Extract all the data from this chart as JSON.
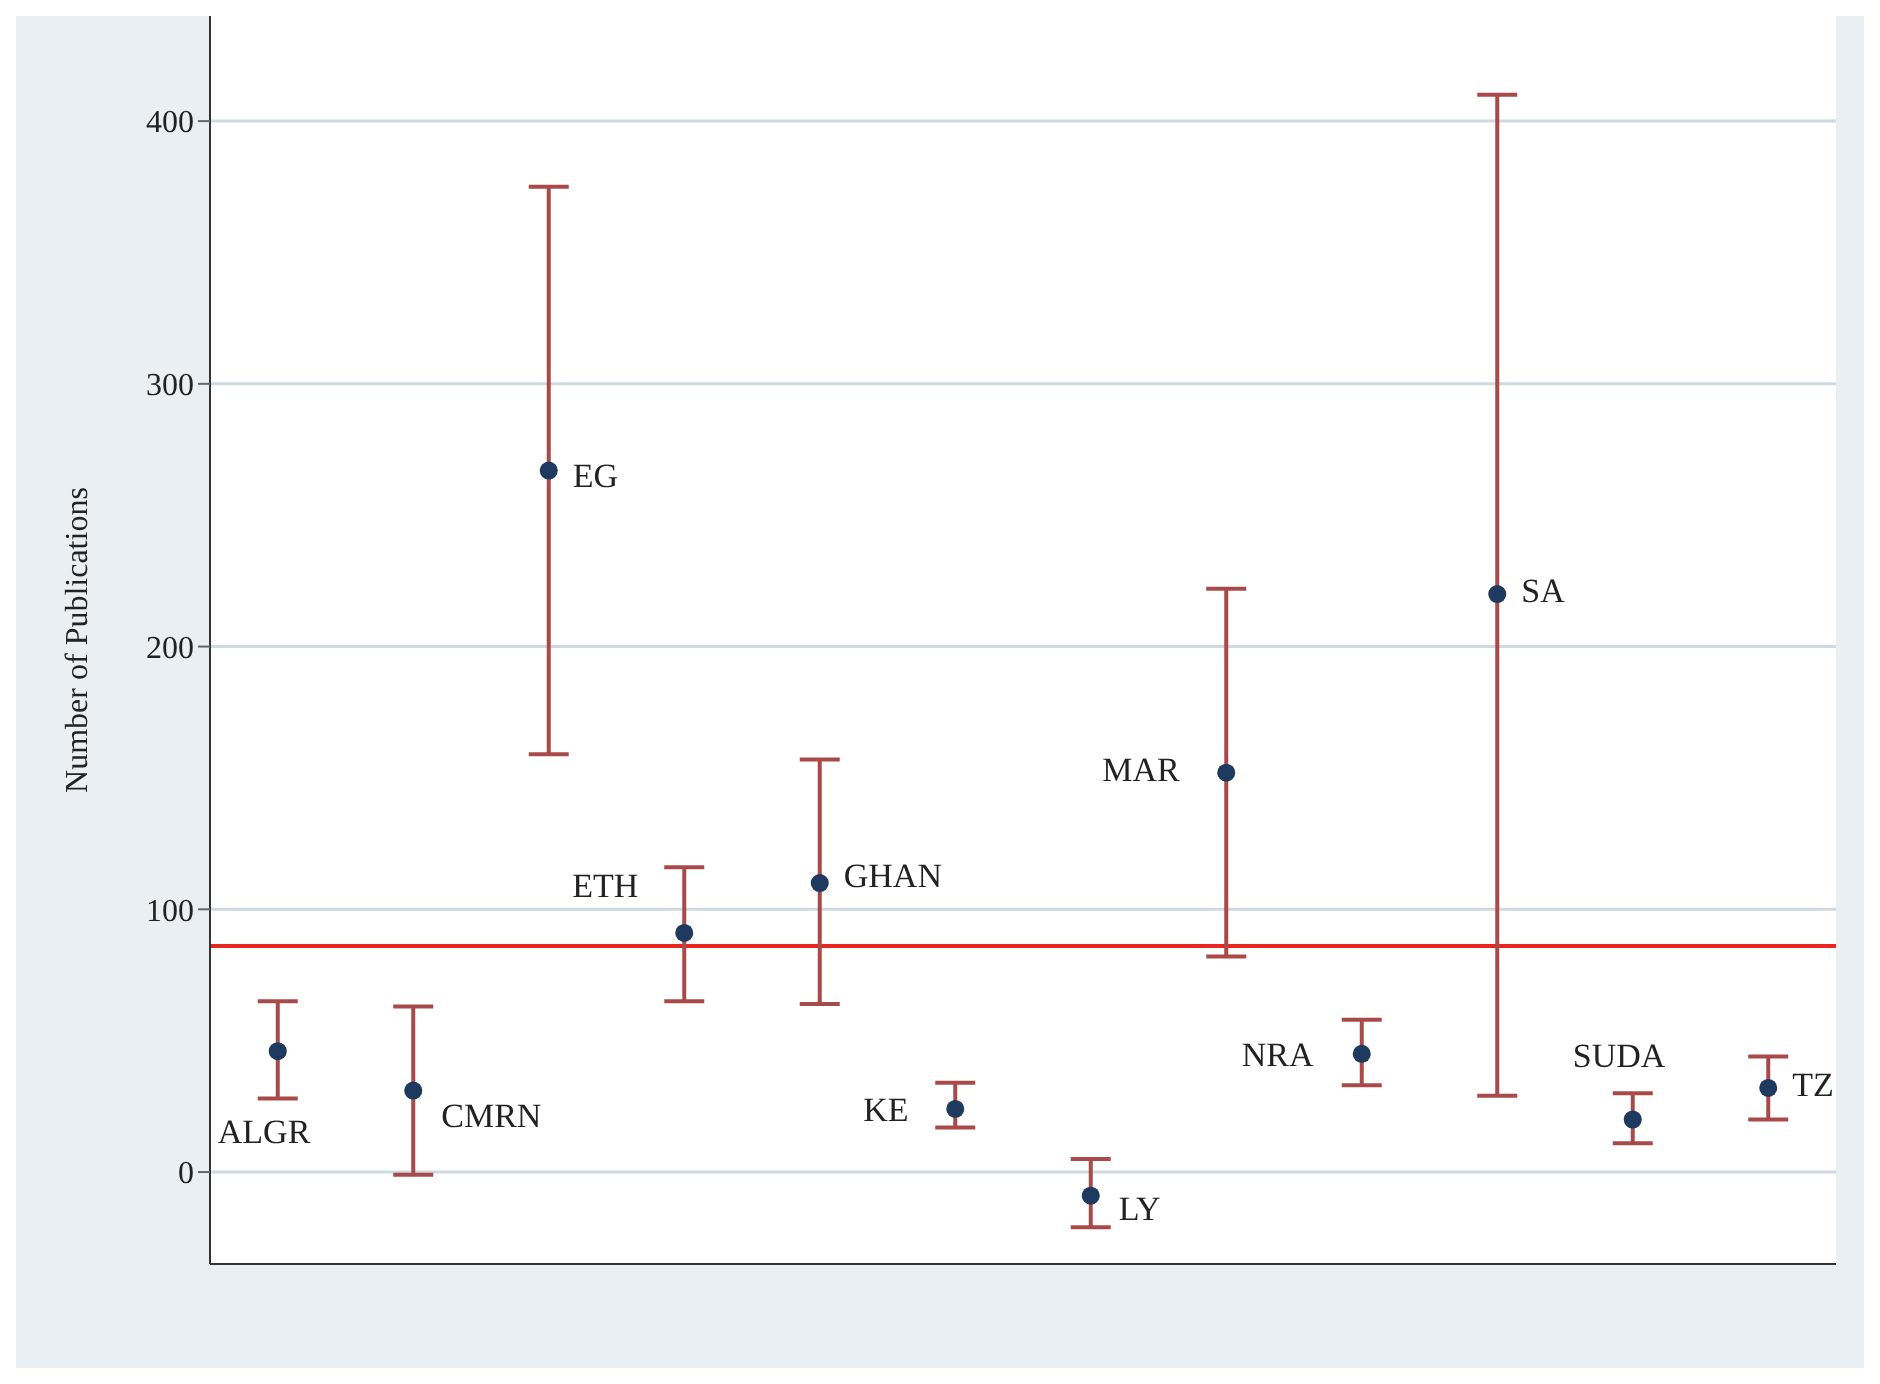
{
  "chart_data": {
    "type": "scatter",
    "ylabel": "Number of Publications",
    "categories": [
      null,
      null,
      null,
      null,
      null,
      null,
      null,
      null,
      null,
      null,
      null,
      null
    ],
    "series": [
      {
        "color": "#1f3a5f",
        "values": [
          46,
          31,
          267,
          91,
          110,
          24,
          -9,
          152,
          45,
          220,
          20,
          32
        ],
        "errors": [
          [
            28,
            65
          ],
          [
            -1,
            63
          ],
          [
            159,
            375
          ],
          [
            65,
            116
          ],
          [
            64,
            157
          ],
          [
            17,
            34
          ],
          [
            -21,
            5
          ],
          [
            82,
            222
          ],
          [
            33,
            58
          ],
          [
            29,
            410
          ],
          [
            11,
            30
          ],
          [
            20,
            44
          ]
        ]
      }
    ],
    "ylim": [
      -35,
      440
    ],
    "yticks": [
      0,
      100,
      200,
      300,
      400
    ],
    "grid": "y",
    "marker": "circle",
    "legend": false,
    "ref_lines": [
      {
        "axis": "y",
        "value": 86,
        "color": "#e8251f"
      }
    ],
    "annotations": [
      "ALGR",
      "CMRN",
      "EG",
      "ETH",
      "GHAN",
      "KE",
      "LY",
      "MAR",
      "NRA",
      "SA",
      "SUDA",
      "TZ"
    ]
  }
}
